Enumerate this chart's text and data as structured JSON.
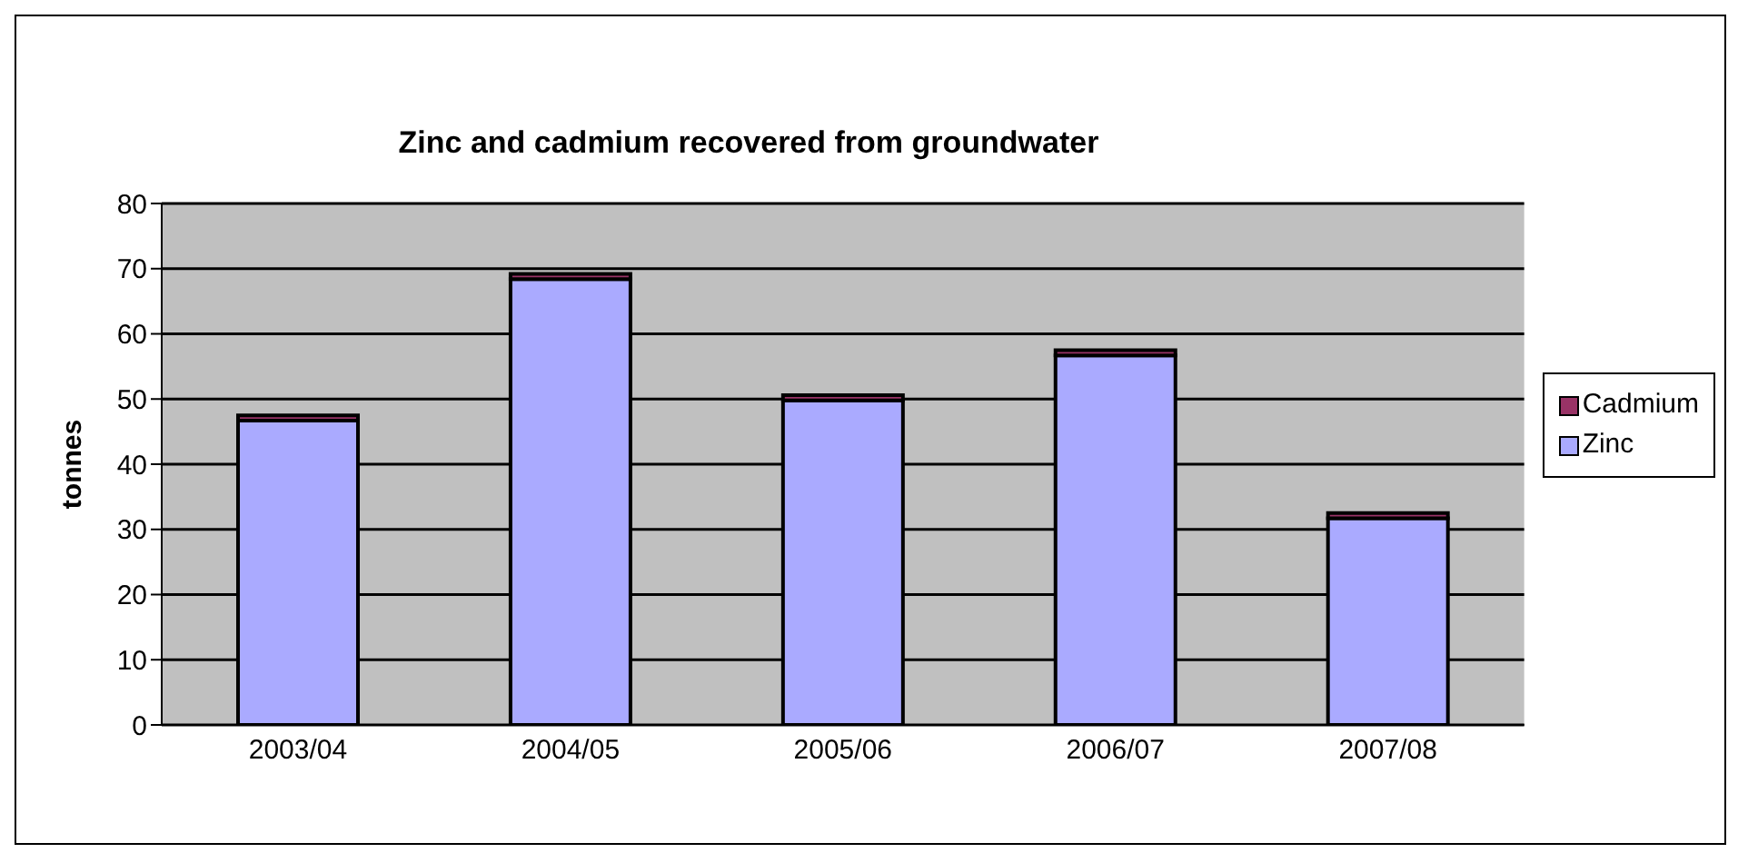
{
  "chart_data": {
    "type": "bar",
    "title": "Zinc and cadmium recovered from groundwater",
    "ylabel": "tonnes",
    "categories": [
      "2003/04",
      "2004/05",
      "2005/06",
      "2006/07",
      "2007/08"
    ],
    "series": [
      {
        "name": "Zinc",
        "color": "#aaaaff",
        "values": [
          46.7,
          68.4,
          49.8,
          56.7,
          31.7
        ]
      },
      {
        "name": "Cadmium",
        "color": "#993366",
        "values": [
          0.8,
          0.8,
          0.8,
          0.8,
          0.8
        ]
      }
    ],
    "stacked": true,
    "ylim": [
      0,
      80
    ],
    "yticks": [
      0,
      10,
      20,
      30,
      40,
      50,
      60,
      70,
      80
    ],
    "grid": "y",
    "legend": "right"
  }
}
